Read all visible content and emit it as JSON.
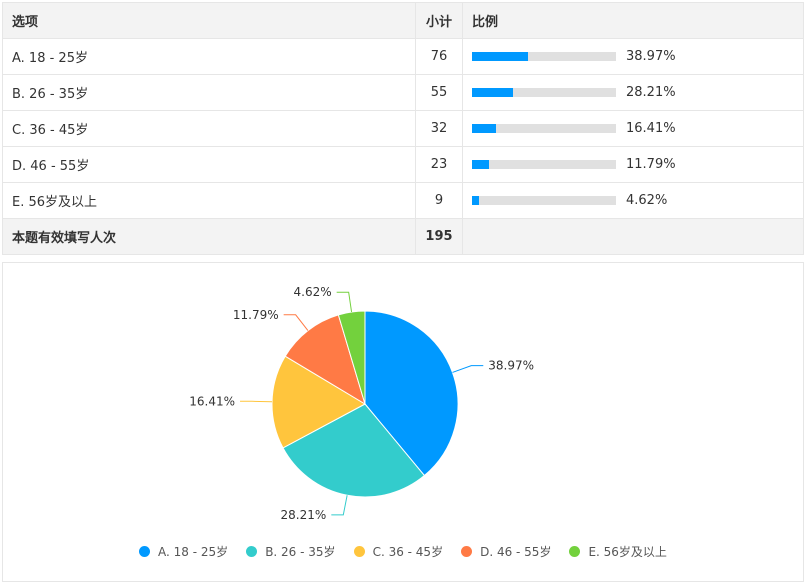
{
  "table": {
    "headers": [
      "选项",
      "小计",
      "比例"
    ],
    "rows": [
      {
        "label": "A. 18 - 25岁",
        "count": "76",
        "pct": "38.97%",
        "frac": 0.3897
      },
      {
        "label": "B. 26 - 35岁",
        "count": "55",
        "pct": "28.21%",
        "frac": 0.2821
      },
      {
        "label": "C. 36 - 45岁",
        "count": "32",
        "pct": "16.41%",
        "frac": 0.1641
      },
      {
        "label": "D. 46 - 55岁",
        "count": "23",
        "pct": "11.79%",
        "frac": 0.1179
      },
      {
        "label": "E. 56岁及以上",
        "count": "9",
        "pct": "4.62%",
        "frac": 0.0462
      }
    ],
    "total_label": "本题有效填写人次",
    "total": "195"
  },
  "chart_data": {
    "type": "pie",
    "categories": [
      "A. 18 - 25岁",
      "B. 26 - 35岁",
      "C. 36 - 45岁",
      "D. 46 - 55岁",
      "E. 56岁及以上"
    ],
    "values": [
      38.97,
      28.21,
      16.41,
      11.79,
      4.62
    ],
    "labels": [
      "38.97%",
      "28.21%",
      "16.41%",
      "11.79%",
      "4.62%"
    ],
    "colors": [
      "#0099ff",
      "#33cccc",
      "#ffc53d",
      "#ff7a45",
      "#73d13d"
    ],
    "legend": "bottom"
  }
}
